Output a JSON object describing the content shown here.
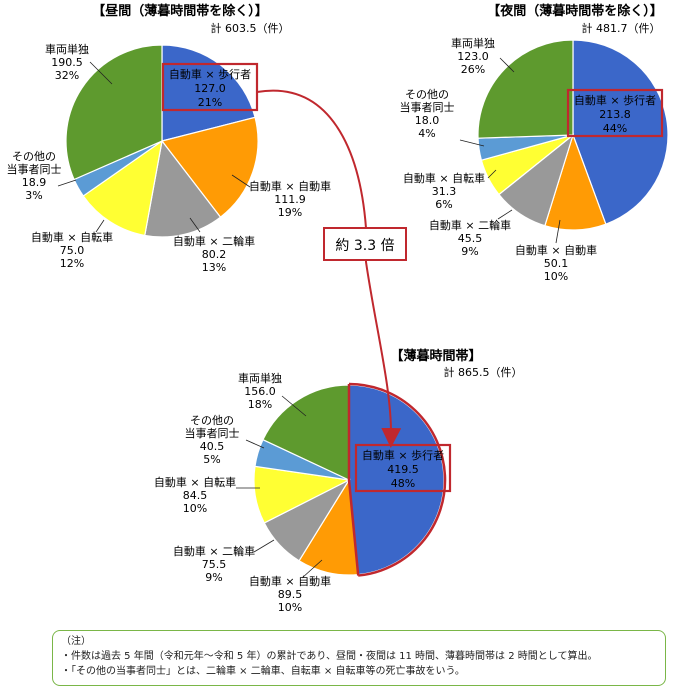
{
  "chart_data": [
    {
      "type": "pie",
      "title": "【昼間（薄暮時間帯を除く）】",
      "total_label": "計 603.5（件）",
      "slices": [
        {
          "name": "自動車 × 歩行者",
          "value": 127.0,
          "value_label": "127.0",
          "pct": "21%",
          "color": "#3b67c9",
          "highlight": true
        },
        {
          "name": "自動車 × 自動車",
          "value": 111.9,
          "value_label": "111.9",
          "pct": "19%",
          "color": "#ff9b05"
        },
        {
          "name": "自動車 × 二輪車",
          "value": 80.2,
          "value_label": "80.2",
          "pct": "13%",
          "color": "#999999"
        },
        {
          "name": "自動車 × 自転車",
          "value": 75.0,
          "value_label": "75.0",
          "pct": "12%",
          "color": "#ffff33"
        },
        {
          "name": "その他の当事者同士",
          "name_lines": [
            "その他の",
            "当事者同士"
          ],
          "value": 18.9,
          "value_label": "18.9",
          "pct": "3%",
          "color": "#5b9bd5"
        },
        {
          "name": "車両単独",
          "value": 190.5,
          "value_label": "190.5",
          "pct": "32%",
          "color": "#5e9a2e"
        }
      ]
    },
    {
      "type": "pie",
      "title": "【夜間（薄暮時間帯を除く）】",
      "total_label": "計 481.7（件）",
      "slices": [
        {
          "name": "自動車 × 歩行者",
          "value": 213.8,
          "value_label": "213.8",
          "pct": "44%",
          "color": "#3b67c9",
          "highlight": true
        },
        {
          "name": "自動車 × 自動車",
          "value": 50.1,
          "value_label": "50.1",
          "pct": "10%",
          "color": "#ff9b05"
        },
        {
          "name": "自動車 × 二輪車",
          "value": 45.5,
          "value_label": "45.5",
          "pct": "9%",
          "color": "#999999"
        },
        {
          "name": "自動車 × 自転車",
          "value": 31.3,
          "value_label": "31.3",
          "pct": "6%",
          "color": "#ffff33"
        },
        {
          "name": "その他の当事者同士",
          "name_lines": [
            "その他の",
            "当事者同士"
          ],
          "value": 18.0,
          "value_label": "18.0",
          "pct": "4%",
          "color": "#5b9bd5"
        },
        {
          "name": "車両単独",
          "value": 123.0,
          "value_label": "123.0",
          "pct": "26%",
          "color": "#5e9a2e"
        }
      ]
    },
    {
      "type": "pie",
      "title": "【薄暮時間帯】",
      "total_label": "計 865.5（件）",
      "slices": [
        {
          "name": "自動車 × 歩行者",
          "value": 419.5,
          "value_label": "419.5",
          "pct": "48%",
          "color": "#3b67c9",
          "highlight": true
        },
        {
          "name": "自動車 × 自動車",
          "value": 89.5,
          "value_label": "89.5",
          "pct": "10%",
          "color": "#ff9b05"
        },
        {
          "name": "自動車 × 二輪車",
          "value": 75.5,
          "value_label": "75.5",
          "pct": "9%",
          "color": "#999999"
        },
        {
          "name": "自動車 × 自転車",
          "value": 84.5,
          "value_label": "84.5",
          "pct": "10%",
          "color": "#ffff33"
        },
        {
          "name": "その他の当事者同士",
          "name_lines": [
            "その他の",
            "当事者同士"
          ],
          "value": 40.5,
          "value_label": "40.5",
          "pct": "5%",
          "color": "#5b9bd5"
        },
        {
          "name": "車両単独",
          "value": 156.0,
          "value_label": "156.0",
          "pct": "18%",
          "color": "#5e9a2e"
        }
      ]
    }
  ],
  "annotation": {
    "ratio_label": "約 3.3 倍",
    "color": "#c0282e"
  },
  "note": {
    "heading": "（注）",
    "lines": [
      "・件数は過去 5 年間（令和元年〜令和 5 年）の累計であり、昼間・夜間は 11 時間、薄暮時間帯は 2 時間として算出。",
      "・「その他の当事者同士」とは、二輪車 × 二輪車、自転車 × 自転車等の死亡事故をいう。"
    ]
  }
}
